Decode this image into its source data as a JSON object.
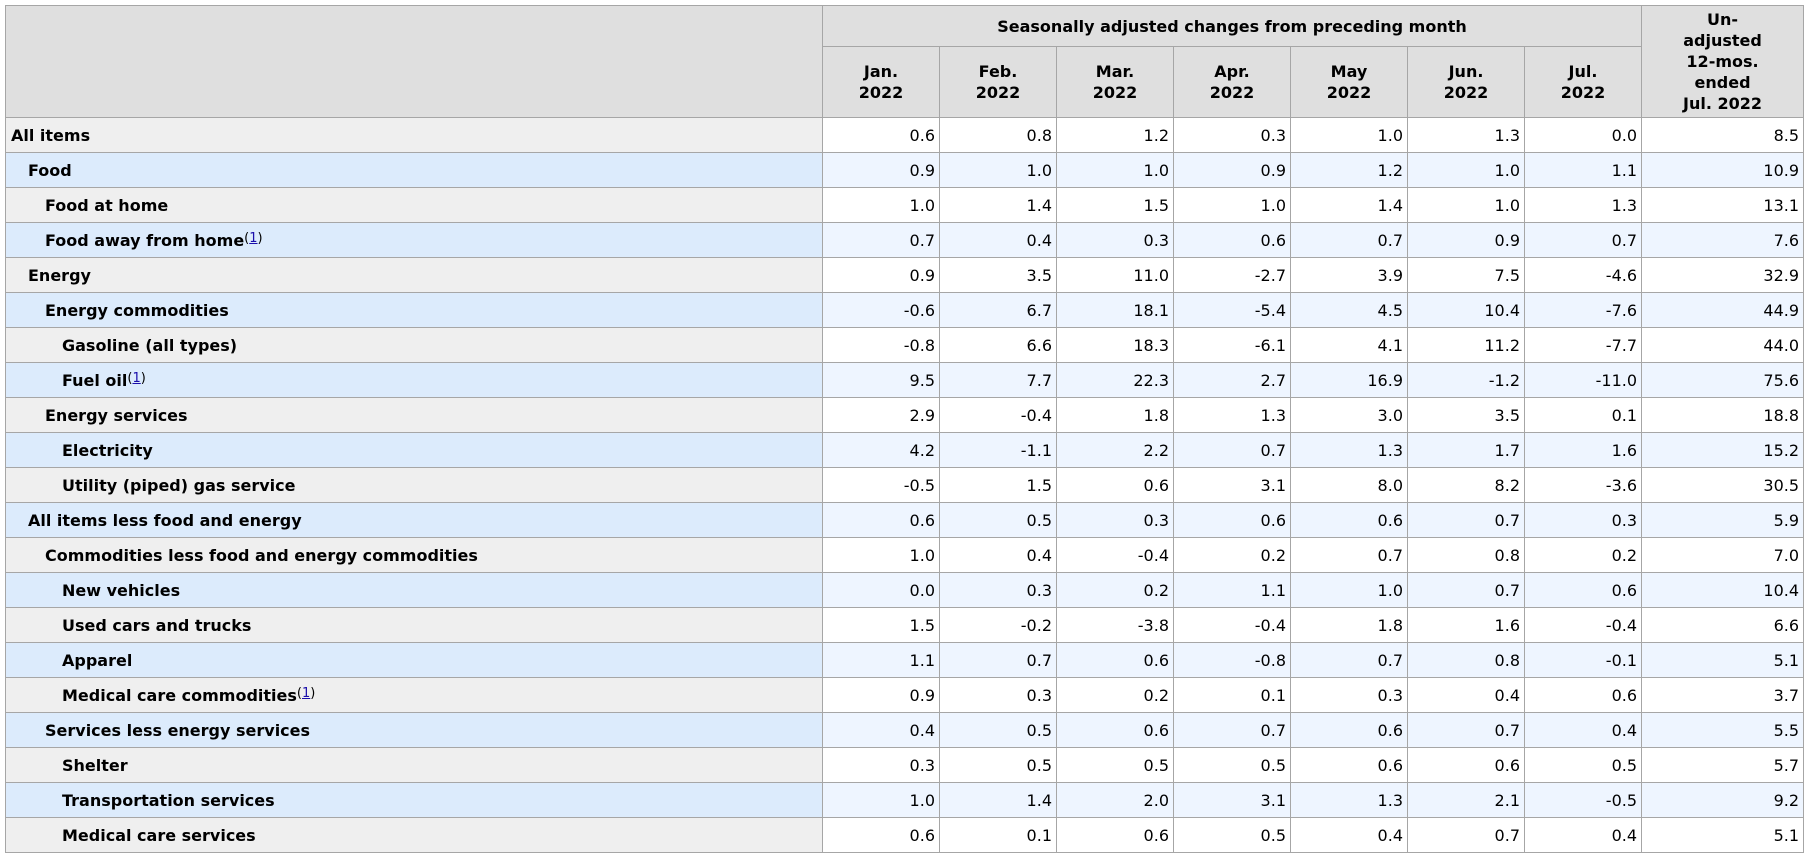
{
  "header": {
    "group_title": "Seasonally adjusted changes from preceding month",
    "months": [
      [
        "Jan.",
        "2022"
      ],
      [
        "Feb.",
        "2022"
      ],
      [
        "Mar.",
        "2022"
      ],
      [
        "Apr.",
        "2022"
      ],
      [
        "May",
        "2022"
      ],
      [
        "Jun.",
        "2022"
      ],
      [
        "Jul.",
        "2022"
      ]
    ],
    "unadjusted": [
      "Un-",
      "adjusted",
      "12-mos.",
      "ended",
      "Jul. 2022"
    ]
  },
  "rows": [
    {
      "label": "All items",
      "indent": 0,
      "note": "",
      "values": [
        "0.6",
        "0.8",
        "1.2",
        "0.3",
        "1.0",
        "1.3",
        "0.0",
        "8.5"
      ]
    },
    {
      "label": "Food",
      "indent": 1,
      "note": "",
      "values": [
        "0.9",
        "1.0",
        "1.0",
        "0.9",
        "1.2",
        "1.0",
        "1.1",
        "10.9"
      ]
    },
    {
      "label": "Food at home",
      "indent": 2,
      "note": "",
      "values": [
        "1.0",
        "1.4",
        "1.5",
        "1.0",
        "1.4",
        "1.0",
        "1.3",
        "13.1"
      ]
    },
    {
      "label": "Food away from home",
      "indent": 2,
      "note": "1",
      "values": [
        "0.7",
        "0.4",
        "0.3",
        "0.6",
        "0.7",
        "0.9",
        "0.7",
        "7.6"
      ]
    },
    {
      "label": "Energy",
      "indent": 1,
      "note": "",
      "values": [
        "0.9",
        "3.5",
        "11.0",
        "-2.7",
        "3.9",
        "7.5",
        "-4.6",
        "32.9"
      ]
    },
    {
      "label": "Energy commodities",
      "indent": 2,
      "note": "",
      "values": [
        "-0.6",
        "6.7",
        "18.1",
        "-5.4",
        "4.5",
        "10.4",
        "-7.6",
        "44.9"
      ]
    },
    {
      "label": "Gasoline (all types)",
      "indent": 3,
      "note": "",
      "values": [
        "-0.8",
        "6.6",
        "18.3",
        "-6.1",
        "4.1",
        "11.2",
        "-7.7",
        "44.0"
      ]
    },
    {
      "label": "Fuel oil",
      "indent": 3,
      "note": "1",
      "values": [
        "9.5",
        "7.7",
        "22.3",
        "2.7",
        "16.9",
        "-1.2",
        "-11.0",
        "75.6"
      ]
    },
    {
      "label": "Energy services",
      "indent": 2,
      "note": "",
      "values": [
        "2.9",
        "-0.4",
        "1.8",
        "1.3",
        "3.0",
        "3.5",
        "0.1",
        "18.8"
      ]
    },
    {
      "label": "Electricity",
      "indent": 3,
      "note": "",
      "values": [
        "4.2",
        "-1.1",
        "2.2",
        "0.7",
        "1.3",
        "1.7",
        "1.6",
        "15.2"
      ]
    },
    {
      "label": "Utility (piped) gas service",
      "indent": 3,
      "note": "",
      "values": [
        "-0.5",
        "1.5",
        "0.6",
        "3.1",
        "8.0",
        "8.2",
        "-3.6",
        "30.5"
      ]
    },
    {
      "label": "All items less food and energy",
      "indent": 1,
      "note": "",
      "values": [
        "0.6",
        "0.5",
        "0.3",
        "0.6",
        "0.6",
        "0.7",
        "0.3",
        "5.9"
      ]
    },
    {
      "label": "Commodities less food and energy commodities",
      "indent": 2,
      "note": "",
      "values": [
        "1.0",
        "0.4",
        "-0.4",
        "0.2",
        "0.7",
        "0.8",
        "0.2",
        "7.0"
      ]
    },
    {
      "label": "New vehicles",
      "indent": 3,
      "note": "",
      "values": [
        "0.0",
        "0.3",
        "0.2",
        "1.1",
        "1.0",
        "0.7",
        "0.6",
        "10.4"
      ]
    },
    {
      "label": "Used cars and trucks",
      "indent": 3,
      "note": "",
      "values": [
        "1.5",
        "-0.2",
        "-3.8",
        "-0.4",
        "1.8",
        "1.6",
        "-0.4",
        "6.6"
      ]
    },
    {
      "label": "Apparel",
      "indent": 3,
      "note": "",
      "values": [
        "1.1",
        "0.7",
        "0.6",
        "-0.8",
        "0.7",
        "0.8",
        "-0.1",
        "5.1"
      ]
    },
    {
      "label": "Medical care commodities",
      "indent": 3,
      "note": "1",
      "values": [
        "0.9",
        "0.3",
        "0.2",
        "0.1",
        "0.3",
        "0.4",
        "0.6",
        "3.7"
      ]
    },
    {
      "label": "Services less energy services",
      "indent": 2,
      "note": "",
      "values": [
        "0.4",
        "0.5",
        "0.6",
        "0.7",
        "0.6",
        "0.7",
        "0.4",
        "5.5"
      ]
    },
    {
      "label": "Shelter",
      "indent": 3,
      "note": "",
      "values": [
        "0.3",
        "0.5",
        "0.5",
        "0.5",
        "0.6",
        "0.6",
        "0.5",
        "5.7"
      ]
    },
    {
      "label": "Transportation services",
      "indent": 3,
      "note": "",
      "values": [
        "1.0",
        "1.4",
        "2.0",
        "3.1",
        "1.3",
        "2.1",
        "-0.5",
        "9.2"
      ]
    },
    {
      "label": "Medical care services",
      "indent": 3,
      "note": "",
      "values": [
        "0.6",
        "0.1",
        "0.6",
        "0.5",
        "0.4",
        "0.7",
        "0.4",
        "5.1"
      ]
    }
  ]
}
